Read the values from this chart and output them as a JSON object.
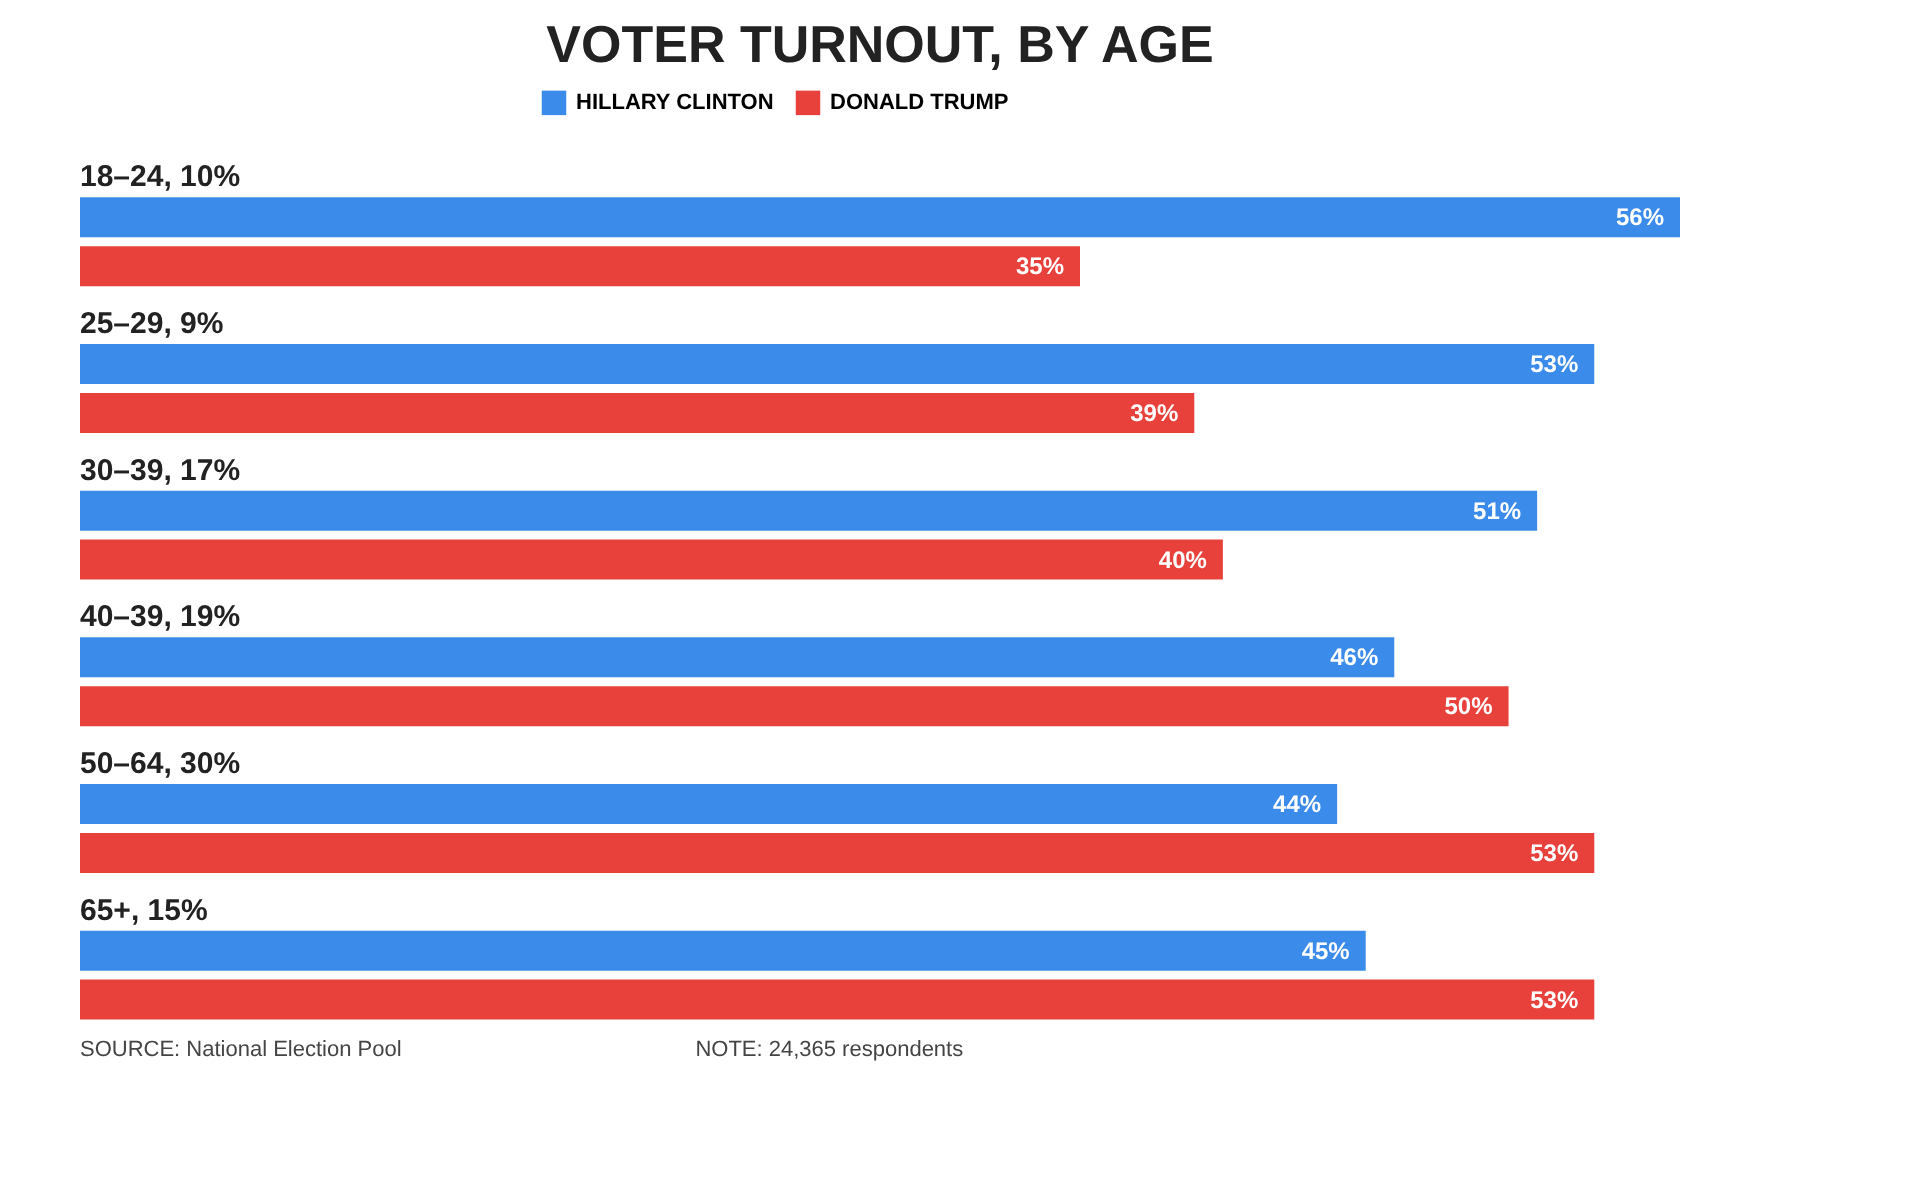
{
  "chart_data": {
    "type": "bar",
    "orientation": "horizontal",
    "title": "VOTER TURNOUT, BY AGE",
    "categories": [
      "18–24, 10%",
      "25–29, 9%",
      "30–39, 17%",
      "40–39, 19%",
      "50–64, 30%",
      "65+, 15%"
    ],
    "series": [
      {
        "name": "HILLARY CLINTON",
        "color": "#3b8beb",
        "values": [
          56,
          53,
          51,
          46,
          44,
          45
        ],
        "value_labels": [
          "56%",
          "53%",
          "51%",
          "46%",
          "44%",
          "45%"
        ]
      },
      {
        "name": "DONALD TRUMP",
        "color": "#e8413c",
        "values": [
          35,
          39,
          40,
          50,
          53,
          53
        ],
        "value_labels": [
          "35%",
          "39%",
          "40%",
          "50%",
          "53%",
          "53%"
        ]
      }
    ],
    "legend": "top",
    "grid": false,
    "annotations": [
      "SOURCE: National Election Pool",
      "NOTE: 24,365 respondents"
    ]
  }
}
